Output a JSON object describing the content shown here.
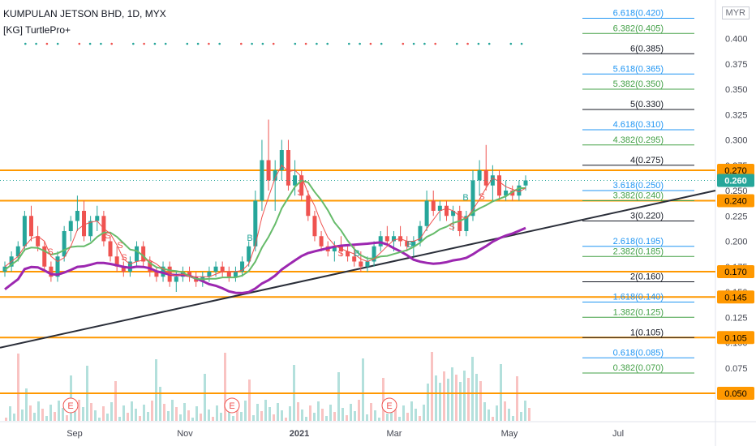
{
  "header": {
    "title": "KUMPULAN JETSON BHD, 1D, MYX",
    "indicator": "[KG] TurtlePro+",
    "currency": "MYR"
  },
  "colors": {
    "bull": "#26a69a",
    "bear": "#ef5350",
    "level": "#ff9800",
    "trend": "#2a2e39",
    "ma_slow": "#9c27b0",
    "ma_mid": "#66bb6a",
    "fib_blue": "#2196f3",
    "fib_green": "#43a047",
    "fib_black": "#131722"
  },
  "chart_data": {
    "type": "candlestick",
    "symbol": "KUMPULAN JETSON BHD",
    "interval": "1D",
    "exchange": "MYX",
    "y_axis": {
      "range": [
        0.03,
        0.43
      ],
      "ticks": [
        "0.400",
        "0.375",
        "0.350",
        "0.325",
        "0.300",
        "0.275",
        "0.250",
        "0.225",
        "0.200",
        "0.175",
        "0.150",
        "0.125",
        "0.100",
        "0.075",
        "0.050"
      ]
    },
    "x_axis": {
      "ticks": [
        "Sep",
        "Nov",
        "2021",
        "Mar",
        "May",
        "Jul"
      ]
    },
    "current_price": "0.260",
    "horizontal_levels": [
      {
        "value": 0.27,
        "label": "0.270"
      },
      {
        "value": 0.24,
        "label": "0.240"
      },
      {
        "value": 0.17,
        "label": "0.170"
      },
      {
        "value": 0.145,
        "label": "0.145"
      },
      {
        "value": 0.105,
        "label": "0.105"
      },
      {
        "value": 0.05,
        "label": "0.050"
      }
    ],
    "fib_extensions": [
      {
        "label": "6.618(0.420)",
        "value": 0.42,
        "color": "blue"
      },
      {
        "label": "6.382(0.405)",
        "value": 0.405,
        "color": "green"
      },
      {
        "label": "6(0.385)",
        "value": 0.385,
        "color": "black"
      },
      {
        "label": "5.618(0.365)",
        "value": 0.365,
        "color": "blue"
      },
      {
        "label": "5.382(0.350)",
        "value": 0.35,
        "color": "green"
      },
      {
        "label": "5(0.330)",
        "value": 0.33,
        "color": "black"
      },
      {
        "label": "4.618(0.310)",
        "value": 0.31,
        "color": "blue"
      },
      {
        "label": "4.382(0.295)",
        "value": 0.295,
        "color": "green"
      },
      {
        "label": "4(0.275)",
        "value": 0.275,
        "color": "black"
      },
      {
        "label": "3.618(0.250)",
        "value": 0.25,
        "color": "blue"
      },
      {
        "label": "3.382(0.240)",
        "value": 0.24,
        "color": "green"
      },
      {
        "label": "3(0.220)",
        "value": 0.22,
        "color": "black"
      },
      {
        "label": "2.618(0.195)",
        "value": 0.195,
        "color": "blue"
      },
      {
        "label": "2.382(0.185)",
        "value": 0.185,
        "color": "green"
      },
      {
        "label": "2(0.160)",
        "value": 0.16,
        "color": "black"
      },
      {
        "label": "1.618(0.140)",
        "value": 0.14,
        "color": "blue"
      },
      {
        "label": "1.382(0.125)",
        "value": 0.125,
        "color": "green"
      },
      {
        "label": "1(0.105)",
        "value": 0.105,
        "color": "black"
      },
      {
        "label": "0.618(0.085)",
        "value": 0.085,
        "color": "blue"
      },
      {
        "label": "0.382(0.070)",
        "value": 0.07,
        "color": "green"
      }
    ],
    "trendline": {
      "start": [
        "Jul 2020",
        0.095
      ],
      "end": [
        "Jun 2021",
        0.25
      ]
    },
    "earnings_markers": [
      "E",
      "E",
      "E"
    ],
    "signal_labels": [
      "S",
      "S",
      "S",
      "S",
      "S",
      "B",
      "S",
      "B",
      "S",
      "B",
      "B",
      "S"
    ],
    "candles": [
      [
        0.17,
        0.18,
        0.165,
        0.175
      ],
      [
        0.175,
        0.19,
        0.17,
        0.185
      ],
      [
        0.185,
        0.2,
        0.18,
        0.195
      ],
      [
        0.195,
        0.23,
        0.19,
        0.225
      ],
      [
        0.225,
        0.235,
        0.2,
        0.205
      ],
      [
        0.205,
        0.215,
        0.19,
        0.195
      ],
      [
        0.195,
        0.2,
        0.17,
        0.175
      ],
      [
        0.175,
        0.18,
        0.16,
        0.165
      ],
      [
        0.165,
        0.19,
        0.16,
        0.185
      ],
      [
        0.185,
        0.215,
        0.18,
        0.21
      ],
      [
        0.21,
        0.225,
        0.2,
        0.22
      ],
      [
        0.22,
        0.245,
        0.21,
        0.23
      ],
      [
        0.23,
        0.24,
        0.2,
        0.205
      ],
      [
        0.205,
        0.225,
        0.2,
        0.22
      ],
      [
        0.22,
        0.235,
        0.21,
        0.225
      ],
      [
        0.225,
        0.23,
        0.195,
        0.2
      ],
      [
        0.2,
        0.205,
        0.18,
        0.185
      ],
      [
        0.185,
        0.195,
        0.17,
        0.175
      ],
      [
        0.175,
        0.18,
        0.165,
        0.17
      ],
      [
        0.17,
        0.185,
        0.165,
        0.18
      ],
      [
        0.18,
        0.2,
        0.175,
        0.195
      ],
      [
        0.195,
        0.2,
        0.175,
        0.18
      ],
      [
        0.18,
        0.185,
        0.165,
        0.17
      ],
      [
        0.17,
        0.175,
        0.16,
        0.165
      ],
      [
        0.165,
        0.18,
        0.16,
        0.175
      ],
      [
        0.175,
        0.18,
        0.155,
        0.16
      ],
      [
        0.16,
        0.17,
        0.15,
        0.165
      ],
      [
        0.165,
        0.175,
        0.16,
        0.17
      ],
      [
        0.17,
        0.175,
        0.16,
        0.165
      ],
      [
        0.165,
        0.17,
        0.155,
        0.16
      ],
      [
        0.16,
        0.17,
        0.155,
        0.165
      ],
      [
        0.165,
        0.175,
        0.16,
        0.17
      ],
      [
        0.17,
        0.18,
        0.165,
        0.175
      ],
      [
        0.175,
        0.18,
        0.165,
        0.17
      ],
      [
        0.17,
        0.175,
        0.16,
        0.165
      ],
      [
        0.165,
        0.175,
        0.16,
        0.17
      ],
      [
        0.17,
        0.185,
        0.165,
        0.18
      ],
      [
        0.18,
        0.2,
        0.175,
        0.195
      ],
      [
        0.195,
        0.25,
        0.19,
        0.24
      ],
      [
        0.24,
        0.3,
        0.23,
        0.28
      ],
      [
        0.28,
        0.32,
        0.25,
        0.26
      ],
      [
        0.26,
        0.28,
        0.23,
        0.27
      ],
      [
        0.27,
        0.3,
        0.26,
        0.29
      ],
      [
        0.29,
        0.3,
        0.25,
        0.255
      ],
      [
        0.255,
        0.28,
        0.245,
        0.265
      ],
      [
        0.265,
        0.27,
        0.24,
        0.245
      ],
      [
        0.245,
        0.25,
        0.22,
        0.225
      ],
      [
        0.225,
        0.23,
        0.2,
        0.205
      ],
      [
        0.205,
        0.21,
        0.19,
        0.195
      ],
      [
        0.195,
        0.2,
        0.185,
        0.19
      ],
      [
        0.19,
        0.2,
        0.18,
        0.195
      ],
      [
        0.195,
        0.205,
        0.185,
        0.19
      ],
      [
        0.19,
        0.195,
        0.18,
        0.185
      ],
      [
        0.185,
        0.195,
        0.175,
        0.18
      ],
      [
        0.18,
        0.19,
        0.17,
        0.175
      ],
      [
        0.175,
        0.185,
        0.17,
        0.18
      ],
      [
        0.18,
        0.2,
        0.175,
        0.195
      ],
      [
        0.195,
        0.21,
        0.19,
        0.205
      ],
      [
        0.205,
        0.215,
        0.195,
        0.2
      ],
      [
        0.2,
        0.21,
        0.19,
        0.205
      ],
      [
        0.205,
        0.215,
        0.195,
        0.2
      ],
      [
        0.2,
        0.205,
        0.19,
        0.195
      ],
      [
        0.195,
        0.205,
        0.185,
        0.2
      ],
      [
        0.2,
        0.22,
        0.195,
        0.215
      ],
      [
        0.215,
        0.25,
        0.21,
        0.24
      ],
      [
        0.24,
        0.25,
        0.225,
        0.23
      ],
      [
        0.23,
        0.24,
        0.22,
        0.235
      ],
      [
        0.235,
        0.24,
        0.22,
        0.225
      ],
      [
        0.225,
        0.235,
        0.21,
        0.23
      ],
      [
        0.23,
        0.235,
        0.205,
        0.21
      ],
      [
        0.21,
        0.23,
        0.205,
        0.225
      ],
      [
        0.225,
        0.27,
        0.22,
        0.26
      ],
      [
        0.26,
        0.28,
        0.245,
        0.27
      ],
      [
        0.27,
        0.295,
        0.25,
        0.255
      ],
      [
        0.255,
        0.275,
        0.24,
        0.265
      ],
      [
        0.265,
        0.27,
        0.24,
        0.245
      ],
      [
        0.245,
        0.26,
        0.24,
        0.25
      ],
      [
        0.25,
        0.255,
        0.24,
        0.245
      ],
      [
        0.245,
        0.26,
        0.24,
        0.255
      ],
      [
        0.255,
        0.265,
        0.25,
        0.26
      ]
    ]
  }
}
